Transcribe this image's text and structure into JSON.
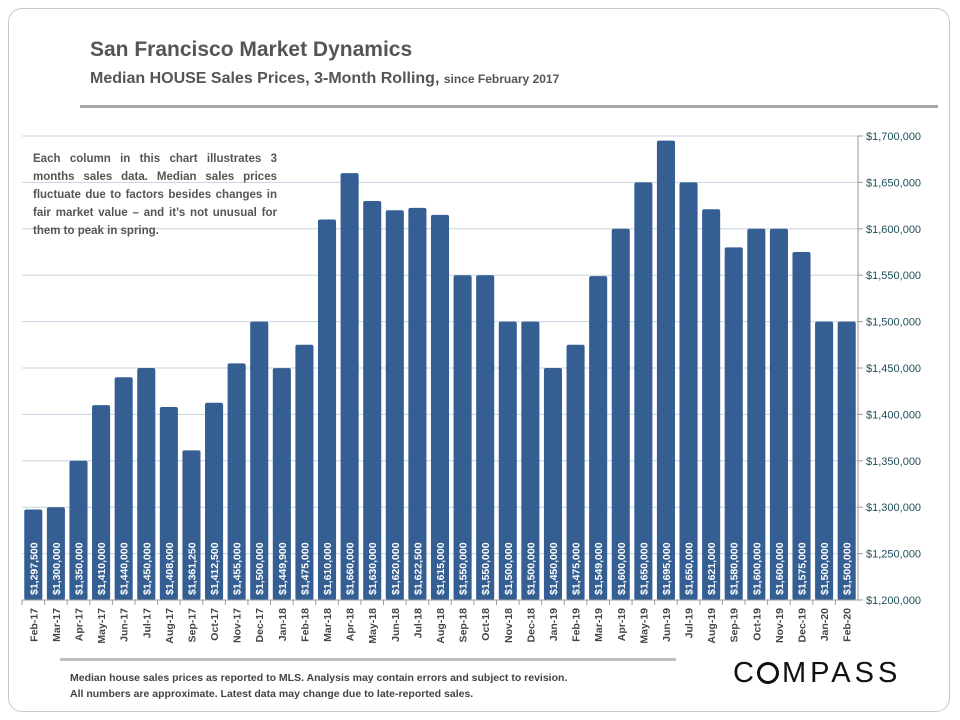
{
  "header": {
    "title": "San Francisco Market Dynamics",
    "subtitle": "Median HOUSE Sales Prices, 3-Month Rolling,",
    "subtitle_small": "since February 2017"
  },
  "note": "Each column in this chart illustrates 3 months sales data. Median sales prices fluctuate due to factors besides changes in fair market value – and it’s not unusual for them to peak in spring.",
  "footer": {
    "line1": "Median house sales prices as reported to MLS.  Analysis may contain errors and subject to revision.",
    "line2": "All numbers are approximate. Latest data may change due to late-reported sales."
  },
  "logo": "COMPASS",
  "chart_data": {
    "type": "bar",
    "title": "",
    "ylim": [
      1200000,
      1700000
    ],
    "yticks": [
      1200000,
      1250000,
      1300000,
      1350000,
      1400000,
      1450000,
      1500000,
      1550000,
      1600000,
      1650000,
      1700000
    ],
    "ytick_labels": [
      "$1,200,000",
      "$1,250,000",
      "$1,300,000",
      "$1,350,000",
      "$1,400,000",
      "$1,450,000",
      "$1,500,000",
      "$1,550,000",
      "$1,600,000",
      "$1,650,000",
      "$1,700,000"
    ],
    "yaxis_side": "right",
    "grid": true,
    "bar_color": "#355e93",
    "categories": [
      "Feb-17",
      "Mar-17",
      "Apr-17",
      "May-17",
      "Jun-17",
      "Jul-17",
      "Aug-17",
      "Sep-17",
      "Oct-17",
      "Nov-17",
      "Dec-17",
      "Jan-18",
      "Feb-18",
      "Mar-18",
      "Apr-18",
      "May-18",
      "Jun-18",
      "Jul-18",
      "Aug-18",
      "Sep-18",
      "Oct-18",
      "Nov-18",
      "Dec-18",
      "Jan-19",
      "Feb-19",
      "Mar-19",
      "Apr-19",
      "May-19",
      "Jun-19",
      "Jul-19",
      "Aug-19",
      "Sep-19",
      "Oct-19",
      "Nov-19",
      "Dec-19",
      "Jan-20",
      "Feb-20"
    ],
    "values": [
      1297500,
      1300000,
      1350000,
      1410000,
      1440000,
      1450000,
      1408000,
      1361250,
      1412500,
      1455000,
      1500000,
      1449900,
      1475000,
      1610000,
      1660000,
      1630000,
      1620000,
      1622500,
      1615000,
      1550000,
      1550000,
      1500000,
      1500000,
      1450000,
      1475000,
      1549000,
      1600000,
      1650000,
      1695000,
      1650000,
      1621000,
      1580000,
      1600000,
      1600000,
      1575000,
      1500000,
      1500000
    ],
    "data_labels": [
      "$1,297,500",
      "$1,300,000",
      "$1,350,000",
      "$1,410,000",
      "$1,440,000",
      "$1,450,000",
      "$1,408,000",
      "$1,361,250",
      "$1,412,500",
      "$1,455,000",
      "$1,500,000",
      "$1,449,900",
      "$1,475,000",
      "$1,610,000",
      "$1,660,000",
      "$1,630,000",
      "$1,620,000",
      "$1,622,500",
      "$1,615,000",
      "$1,550,000",
      "$1,550,000",
      "$1,500,000",
      "$1,500,000",
      "$1,450,000",
      "$1,475,000",
      "$1,549,000",
      "$1,600,000",
      "$1,650,000",
      "$1,695,000",
      "$1,650,000",
      "$1,621,000",
      "$1,580,000",
      "$1,600,000",
      "$1,600,000",
      "$1,575,000",
      "$1,500,000",
      "$1,500,000"
    ]
  }
}
